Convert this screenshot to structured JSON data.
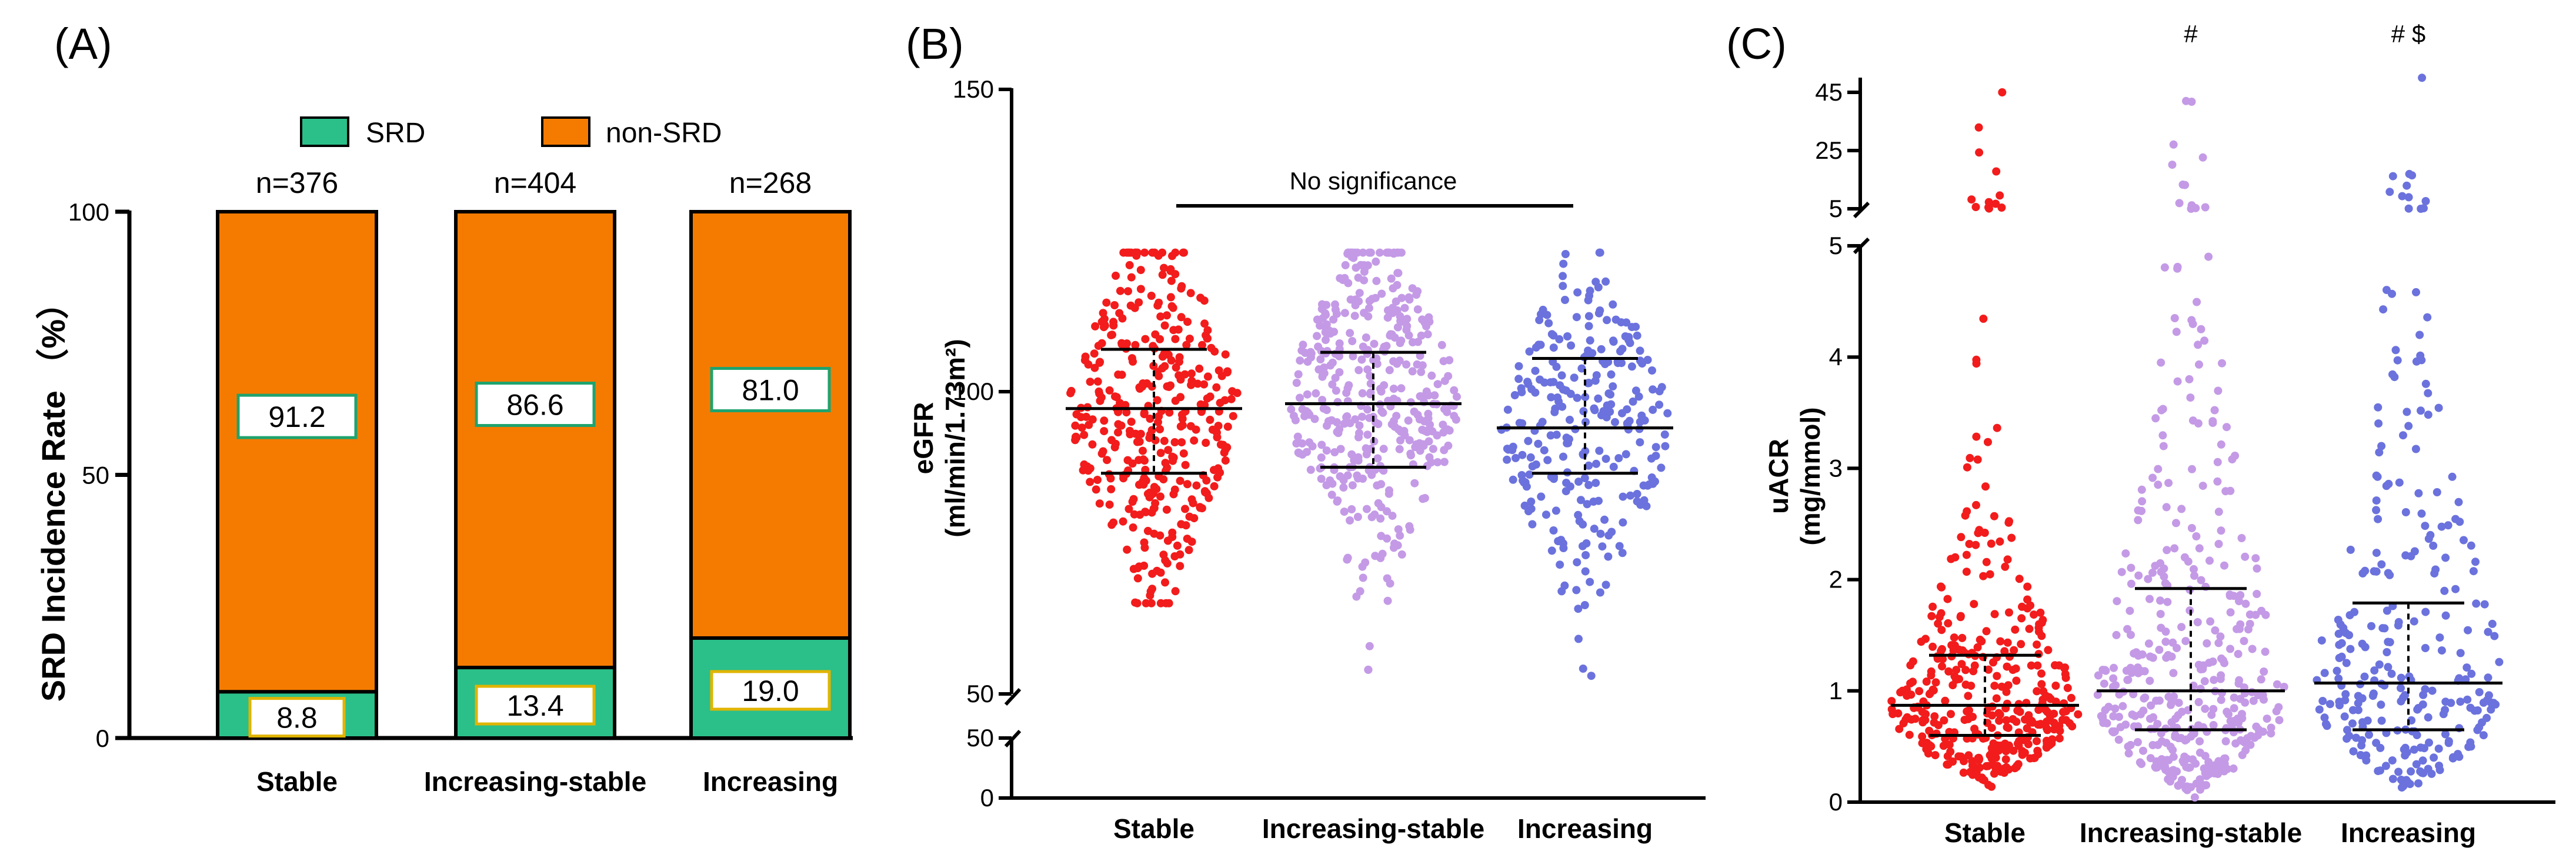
{
  "colors": {
    "srd": "#2bbf8a",
    "non_srd": "#f57b00",
    "stable": "#f21c1c",
    "increasing_stable": "#c49ae6",
    "increasing": "#6b72dd"
  },
  "chart_data": [
    {
      "panel": "(A)",
      "type": "bar",
      "stacked": true,
      "ylabel": "SRD Incidence Rate （%）",
      "yticks": [
        "0",
        "50",
        "100"
      ],
      "ylim": [
        0,
        100
      ],
      "categories": [
        "Stable",
        "Increasing-stable",
        "Increasing"
      ],
      "n_labels": [
        "n=376",
        "n=404",
        "n=268"
      ],
      "legend": [
        "SRD",
        "non-SRD"
      ],
      "series": [
        {
          "name": "SRD",
          "values": [
            8.8,
            13.4,
            19.0
          ],
          "labels": [
            "8.8",
            "13.4",
            "19.0"
          ]
        },
        {
          "name": "non-SRD",
          "values": [
            91.2,
            86.6,
            81.0
          ],
          "labels": [
            "91.2",
            "86.6",
            "81.0"
          ]
        }
      ]
    },
    {
      "panel": "(B)",
      "type": "scatter",
      "ylabel_line1": "eGFR",
      "ylabel_line2": "(ml/min/1.73m²)",
      "yticks": [
        "0",
        "50",
        "50",
        "100",
        "150"
      ],
      "axis_break": [
        0,
        50
      ],
      "ylim": [
        0,
        150
      ],
      "categories": [
        "Stable",
        "Increasing-stable",
        "Increasing"
      ],
      "annotation": "No significance",
      "groups": [
        {
          "name": "Stable",
          "median": 97.2,
          "q1": 86.5,
          "q3": 107.0,
          "min": 65,
          "max": 123,
          "n": 376
        },
        {
          "name": "Increasing-stable",
          "median": 98.0,
          "q1": 87.5,
          "q3": 106.5,
          "min": 54,
          "max": 123,
          "n": 404
        },
        {
          "name": "Increasing",
          "median": 94.0,
          "q1": 86.5,
          "q3": 105.5,
          "min": 53,
          "max": 123,
          "n": 268
        }
      ]
    },
    {
      "panel": "(C)",
      "type": "scatter",
      "ylabel_line1": "uACR",
      "ylabel_line2": "(mg/mmol)",
      "yticks": [
        "0",
        "1",
        "2",
        "3",
        "4",
        "5",
        "5",
        "25",
        "45"
      ],
      "axis_break": [
        5,
        5
      ],
      "ylim": [
        0,
        45
      ],
      "categories": [
        "Stable",
        "Increasing-stable",
        "Increasing"
      ],
      "significance": [
        "",
        "#",
        "# $"
      ],
      "groups": [
        {
          "name": "Stable",
          "median": 0.87,
          "q1": 0.6,
          "q3": 1.32,
          "max": 45,
          "n": 376
        },
        {
          "name": "Increasing-stable",
          "median": 1.0,
          "q1": 0.65,
          "q3": 1.92,
          "max": 42,
          "n": 404
        },
        {
          "name": "Increasing",
          "median": 1.07,
          "q1": 0.65,
          "q3": 1.79,
          "max": 50,
          "n": 268
        }
      ]
    }
  ]
}
